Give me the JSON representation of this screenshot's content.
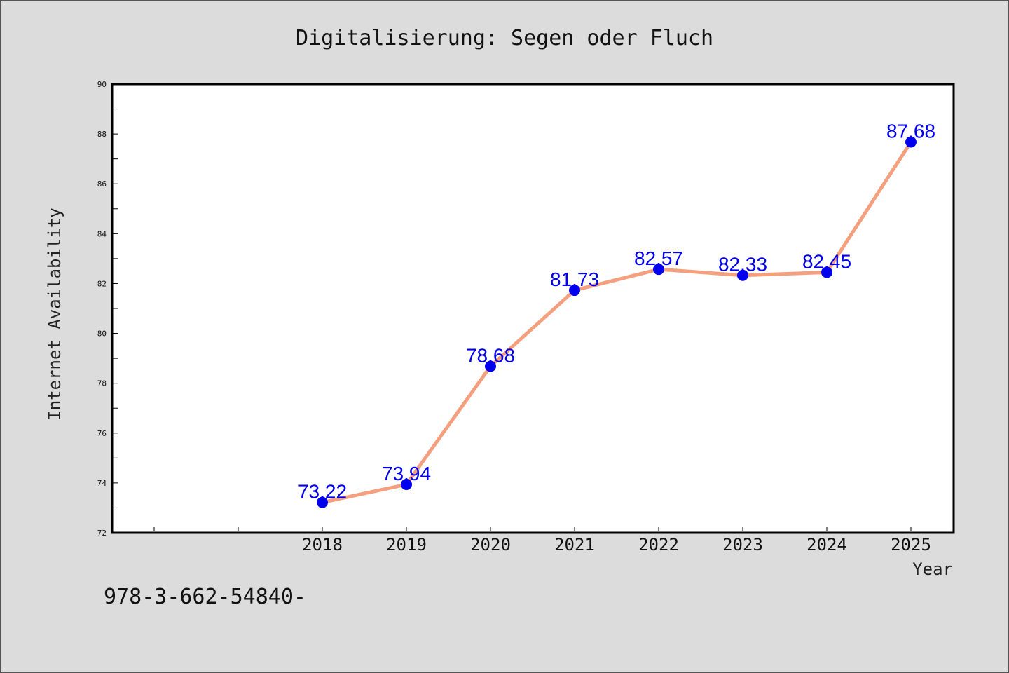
{
  "chart_data": {
    "type": "line",
    "title": "Digitalisierung: Segen oder Fluch",
    "xlabel": "Year",
    "ylabel": "Internet Availability",
    "x": [
      "2018",
      "2019",
      "2020",
      "2021",
      "2022",
      "2023",
      "2024",
      "2025"
    ],
    "series": [
      {
        "values": [
          73.22,
          73.94,
          78.68,
          81.73,
          82.57,
          82.33,
          82.45,
          87.68
        ],
        "labels": [
          "73.22",
          "73.94",
          "78.68",
          "81.73",
          "82.57",
          "82.33",
          "82.45",
          "87.68"
        ]
      }
    ],
    "ylim": [
      72,
      90
    ],
    "yticks": [
      "72",
      "74",
      "76",
      "78",
      "80",
      "82",
      "84",
      "86",
      "88",
      "90"
    ],
    "grid": false,
    "colors": {
      "line": "#f4a07e",
      "marker": "#0000ee",
      "label": "#0000ee"
    }
  },
  "footer": {
    "text": "978-3-662-54840-"
  }
}
